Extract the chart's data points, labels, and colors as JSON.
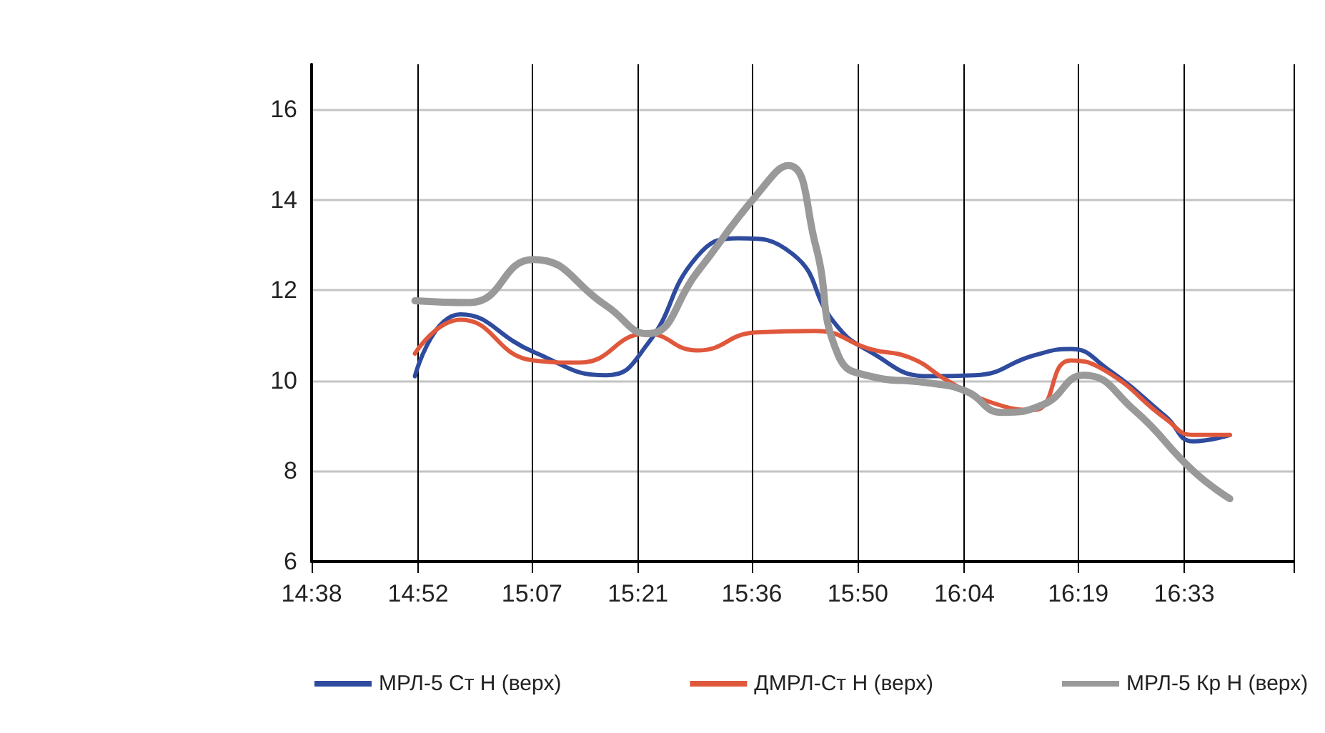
{
  "chart_data": {
    "type": "line",
    "xlim": [
      14.633,
      16.79
    ],
    "ylim": [
      6,
      17
    ],
    "xticks": [
      {
        "value": 14.633,
        "label": "14:38"
      },
      {
        "value": 14.867,
        "label": "14:52"
      },
      {
        "value": 15.117,
        "label": "15:07"
      },
      {
        "value": 15.35,
        "label": "15:21"
      },
      {
        "value": 15.6,
        "label": "15:36"
      },
      {
        "value": 15.833,
        "label": "15:50"
      },
      {
        "value": 16.067,
        "label": "16:04"
      },
      {
        "value": 16.317,
        "label": "16:19"
      },
      {
        "value": 16.55,
        "label": "16:33"
      },
      {
        "value": 16.79,
        "label": null
      }
    ],
    "yticks": [
      6,
      8,
      10,
      12,
      14,
      16
    ],
    "grid": true,
    "legend": "bottom",
    "marker": "none",
    "line_style": "solid",
    "series": [
      {
        "name": "МРЛ-5 Ст Н (верх)",
        "color": "#2f4b9e",
        "x": [
          14.86,
          14.96,
          15.12,
          15.28,
          15.37,
          15.48,
          15.57,
          15.69,
          15.78,
          15.86,
          15.99,
          16.09,
          16.22,
          16.3,
          16.38,
          16.51,
          16.57,
          16.65
        ],
        "values": [
          10.1,
          11.47,
          10.64,
          10.12,
          10.8,
          12.75,
          13.15,
          12.8,
          11.3,
          10.64,
          10.1,
          10.12,
          10.56,
          10.7,
          10.27,
          9.2,
          8.66,
          8.8
        ]
      },
      {
        "name": "ДМРЛ-Ст Н (верх)",
        "color": "#e0583c",
        "x": [
          14.86,
          14.96,
          15.12,
          15.22,
          15.37,
          15.48,
          15.61,
          15.74,
          15.86,
          15.95,
          16.03,
          16.12,
          16.22,
          16.3,
          16.38,
          16.51,
          16.57,
          16.65
        ],
        "values": [
          10.6,
          11.35,
          10.45,
          10.4,
          11.04,
          10.67,
          11.07,
          11.1,
          10.7,
          10.5,
          10.0,
          9.54,
          9.35,
          10.45,
          10.2,
          9.15,
          8.8,
          8.8
        ]
      },
      {
        "name": "МРЛ-5 Кр Н (верх)",
        "color": "#999999",
        "x": [
          14.86,
          14.98,
          15.12,
          15.28,
          15.37,
          15.48,
          15.61,
          15.68,
          15.74,
          15.79,
          15.86,
          15.99,
          16.07,
          16.15,
          16.24,
          16.33,
          16.44,
          16.57,
          16.65
        ],
        "values": [
          11.77,
          11.73,
          12.68,
          11.66,
          11.04,
          12.4,
          14.1,
          14.76,
          13.0,
          10.56,
          10.1,
          9.95,
          9.77,
          9.3,
          9.47,
          10.12,
          9.35,
          8.0,
          7.39
        ]
      }
    ]
  }
}
